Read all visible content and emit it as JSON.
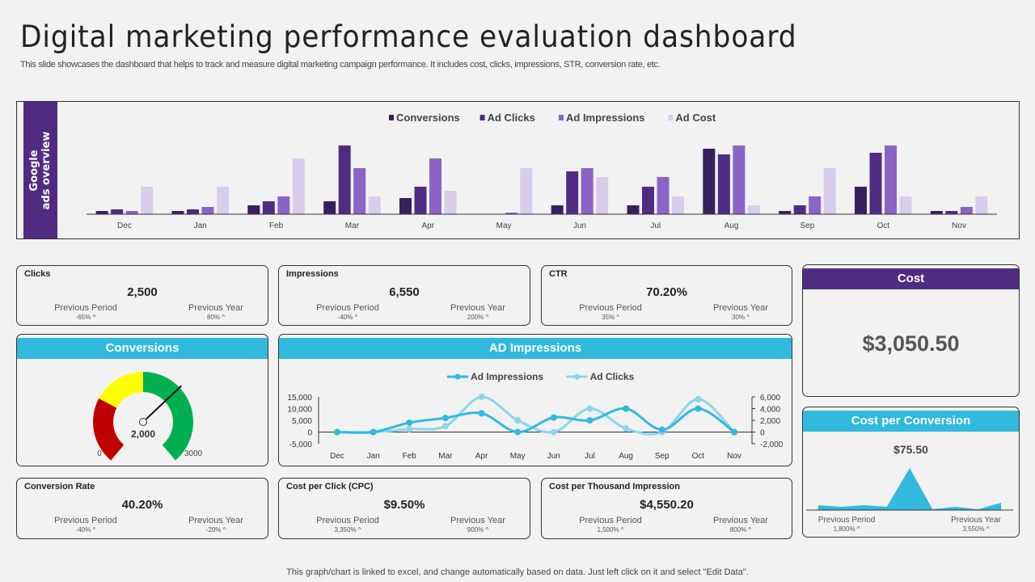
{
  "header": {
    "title": "Digital marketing performance evaluation dashboard",
    "subtitle": "This slide showcases the dashboard that helps to track and measure digital marketing campaign performance. It includes cost, clicks, impressions, STR, conversion rate, etc."
  },
  "google_ads": {
    "side_label_1": "Google",
    "side_label_2": "ads overview"
  },
  "chart_data": [
    {
      "type": "bar",
      "categories": [
        "Dec",
        "Jan",
        "Feb",
        "Mar",
        "Apr",
        "May",
        "Jun",
        "Jul",
        "Aug",
        "Sep",
        "Oct",
        "Nov"
      ],
      "series": [
        {
          "name": "Conversions",
          "color": "#3a1f5d",
          "values": [
            4,
            4,
            11,
            16,
            20,
            0,
            11,
            11,
            81,
            4,
            34,
            4
          ]
        },
        {
          "name": "Ad Clicks",
          "color": "#4f2c82",
          "values": [
            6,
            6,
            16,
            85,
            34,
            0,
            53,
            34,
            74,
            11,
            76,
            4
          ]
        },
        {
          "name": "Ad Impressions",
          "color": "#8c63c6",
          "values": [
            4,
            9,
            22,
            57,
            69,
            2,
            57,
            46,
            85,
            22,
            85,
            9
          ]
        },
        {
          "name": "Ad Cost",
          "color": "#d9cdec",
          "values": [
            34,
            34,
            69,
            22,
            29,
            57,
            46,
            22,
            11,
            57,
            22,
            22
          ]
        }
      ],
      "legend": "top-center",
      "grid": false
    },
    {
      "type": "line",
      "title": "AD Impressions",
      "categories": [
        "Dec",
        "Jan",
        "Feb",
        "Mar",
        "Apr",
        "May",
        "Jun",
        "Jul",
        "Aug",
        "Sep",
        "Oct",
        "Nov"
      ],
      "y_left": {
        "ylim": [
          -5000,
          15000
        ],
        "ticks": [
          "15,000",
          "10,000",
          "5,000",
          "0",
          "-5,000"
        ]
      },
      "y_right": {
        "ylim": [
          -2000,
          6000
        ],
        "ticks": [
          "6,000",
          "4,000",
          "2,000",
          "0",
          "-2,000"
        ]
      },
      "series": [
        {
          "name": "Ad Impressions",
          "axis": "left",
          "color": "#31b9de",
          "values": [
            0,
            0,
            4000,
            6000,
            8000,
            0,
            6200,
            5000,
            10000,
            1000,
            10000,
            0
          ]
        },
        {
          "name": "Ad Clicks",
          "axis": "right",
          "color": "#8ad6ea",
          "values": [
            0,
            0,
            500,
            1000,
            6000,
            2000,
            0,
            4000,
            600,
            0,
            5600,
            0
          ]
        }
      ],
      "legend": "top-center",
      "grid": false
    },
    {
      "type": "area",
      "title": "Cost per Conversion",
      "values": [
        6,
        4,
        6,
        4,
        52,
        1,
        4,
        1,
        9
      ],
      "color": "#31b9de"
    }
  ],
  "kpis": {
    "clicks": {
      "label": "Clicks",
      "value": "2,500",
      "pp": "-65% ^",
      "py": "80% ^"
    },
    "impressions": {
      "label": "Impressions",
      "value": "6,550",
      "pp": "-40% ^",
      "py": "200% ^"
    },
    "ctr": {
      "label": "CTR",
      "value": "70.20%",
      "pp": "35% ^",
      "py": "30% ^"
    },
    "conv_rate": {
      "label": "Conversion Rate",
      "value": "40.20%",
      "pp": "-40% ^",
      "py": "-20% ^"
    },
    "cpc": {
      "label": "Cost per Click  (CPC)",
      "value": "$9.50%",
      "pp": "3,350% ^",
      "py": "900% ^"
    },
    "cpm": {
      "label": "Cost per Thousand Impression",
      "value": "$4,550.20",
      "pp": "1,500% ^",
      "py": "800% ^"
    },
    "previous_period": "Previous Period",
    "previous_year": "Previous Year"
  },
  "cost": {
    "title": "Cost",
    "value": "$3,050.50"
  },
  "conversions": {
    "title": "Conversions",
    "value": "2,000",
    "min": "0",
    "max": "3000",
    "current": 2000,
    "colors": [
      "#c00000",
      "#ffff00",
      "#00b050"
    ]
  },
  "ad_impressions": {
    "title": "AD Impressions"
  },
  "cost_per_conversion": {
    "title": "Cost per Conversion",
    "value": "$75.50",
    "pp": "1,800% ^",
    "py": "3,550% ^"
  },
  "footer": "This graph/chart is linked to excel, and change automatically based on data. Just left click on it and select \"Edit Data\"."
}
